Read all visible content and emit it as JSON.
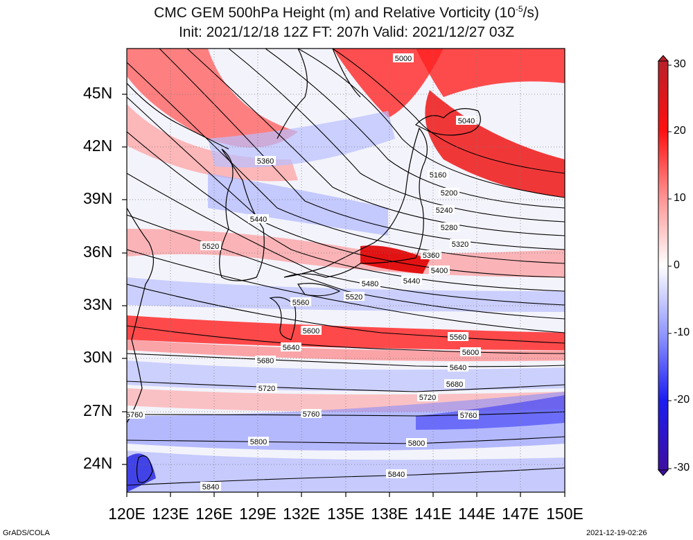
{
  "title_line1": "CMC GEM 500hPa Height (m) and Relative Vorticity (10",
  "title_sup": "-5",
  "title_line1_end": "/s)",
  "title_line2": "Init: 2021/12/18 12Z  FT: 207h  Valid: 2021/12/27 03Z",
  "lat_labels": [
    "45N",
    "42N",
    "39N",
    "36N",
    "33N",
    "30N",
    "27N",
    "24N"
  ],
  "lon_labels": [
    "120E",
    "123E",
    "126E",
    "129E",
    "132E",
    "135E",
    "138E",
    "141E",
    "144E",
    "147E",
    "150E"
  ],
  "colorbar_labels": [
    "30",
    "20",
    "10",
    "0",
    "-10",
    "-20",
    "-30"
  ],
  "contour_labels": [
    "5000",
    "5040",
    "5160",
    "5200",
    "5240",
    "5280",
    "5320",
    "5360",
    "5360",
    "5400",
    "5440",
    "5440",
    "5480",
    "5520",
    "5520",
    "5560",
    "5560",
    "5600",
    "5600",
    "5640",
    "5640",
    "5680",
    "5680",
    "5720",
    "5720",
    "5760",
    "5760",
    "5760",
    "5800",
    "5800",
    "5840",
    "5840"
  ],
  "footer_left": "GrADS/COLA",
  "footer_right": "2021-12-19-02:26",
  "colors": {
    "positive": "#e60000",
    "negative": "#1a1aff",
    "frame": "#000000"
  }
}
